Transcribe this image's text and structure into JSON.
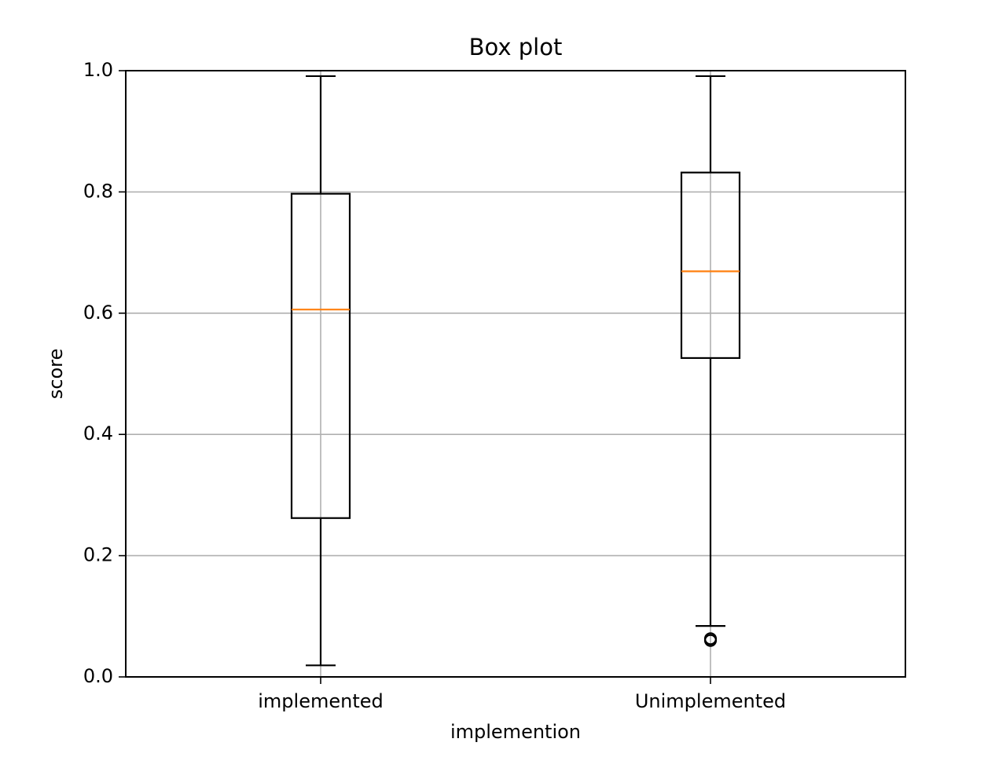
{
  "chart_data": {
    "type": "box",
    "title": "Box plot",
    "xlabel": "implemention",
    "ylabel": "score",
    "ylim": [
      0.0,
      1.0
    ],
    "yticks": [
      "0.0",
      "0.2",
      "0.4",
      "0.6",
      "0.8",
      "1.0"
    ],
    "grid": true,
    "categories": [
      "implemented",
      "Unimplemented"
    ],
    "boxes": [
      {
        "category": "implemented",
        "whisker_low": 0.019,
        "q1": 0.262,
        "median": 0.606,
        "q3": 0.797,
        "whisker_high": 0.991,
        "outliers": []
      },
      {
        "category": "Unimplemented",
        "whisker_low": 0.084,
        "q1": 0.526,
        "median": 0.669,
        "q3": 0.832,
        "whisker_high": 0.991,
        "outliers": [
          0.06,
          0.063
        ]
      }
    ],
    "colors": {
      "box": "#000000",
      "median": "#ff7f0e",
      "grid": "#b0b0b0"
    }
  }
}
